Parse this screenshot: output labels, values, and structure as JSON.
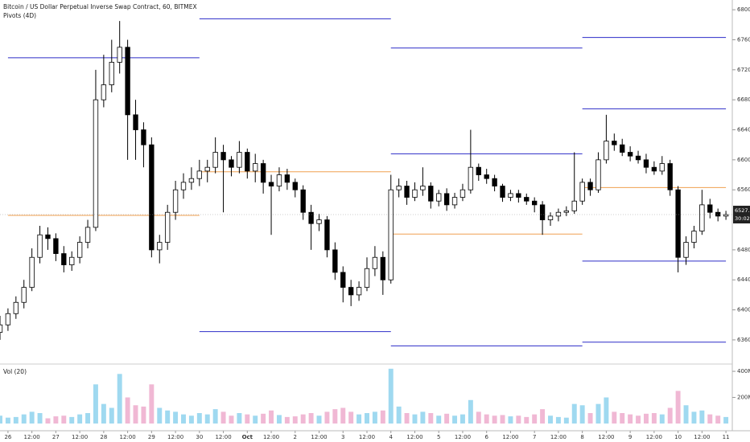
{
  "chart_data": {
    "type": "candlestick",
    "title": "Bitcoin / US Dollar Perpetual Inverse Swap Contract, 60, BITMEX",
    "subtitle": "Pivots (4D)",
    "up_color": "#ffffff",
    "down_color": "#000000",
    "wick_color": "#000000",
    "x": [
      -4,
      0,
      4,
      8,
      12,
      16,
      20,
      24,
      28,
      32,
      36,
      40,
      44,
      48,
      52,
      56,
      60,
      64,
      68,
      72,
      76,
      80,
      84,
      88,
      92,
      96,
      100,
      104,
      108,
      112,
      116,
      120,
      124,
      128,
      132,
      136,
      140,
      144,
      148,
      152,
      156,
      160,
      164,
      168,
      172,
      176,
      180,
      184,
      188,
      192,
      196,
      200,
      204,
      208,
      212,
      216,
      220,
      224,
      228,
      232,
      236,
      240,
      244,
      248,
      252,
      256,
      260,
      264,
      268,
      272,
      276,
      280,
      284,
      288,
      292,
      296,
      300,
      304,
      308,
      312,
      316,
      320,
      324,
      328,
      332,
      336,
      340,
      344,
      348,
      352,
      356,
      360
    ],
    "open": [
      6370,
      6380,
      6395,
      6410,
      6430,
      6470,
      6500,
      6495,
      6475,
      6460,
      6470,
      6490,
      6510,
      6680,
      6700,
      6730,
      6750,
      6660,
      6640,
      6620,
      6480,
      6490,
      6530,
      6560,
      6570,
      6575,
      6585,
      6590,
      6610,
      6600,
      6590,
      6610,
      6585,
      6595,
      6570,
      6565,
      6580,
      6570,
      6560,
      6530,
      6515,
      6520,
      6480,
      6450,
      6430,
      6420,
      6430,
      6455,
      6470,
      6440,
      6560,
      6565,
      6550,
      6560,
      6565,
      6545,
      6555,
      6540,
      6550,
      6560,
      6590,
      6580,
      6575,
      6565,
      6550,
      6555,
      6550,
      6545,
      6540,
      6520,
      6525,
      6530,
      6532,
      6545,
      6570,
      6560,
      6600,
      6625,
      6620,
      6610,
      6605,
      6600,
      6590,
      6585,
      6595,
      6560,
      6470,
      6490,
      6505,
      6540,
      6530,
      6525
    ],
    "high": [
      6392,
      6402,
      6418,
      6440,
      6482,
      6512,
      6510,
      6502,
      6485,
      6478,
      6498,
      6520,
      6720,
      6740,
      6760,
      6785,
      6760,
      6680,
      6650,
      6630,
      6500,
      6540,
      6572,
      6582,
      6590,
      6600,
      6600,
      6630,
      6620,
      6605,
      6625,
      6615,
      6608,
      6600,
      6580,
      6590,
      6588,
      6575,
      6566,
      6540,
      6528,
      6525,
      6490,
      6458,
      6440,
      6438,
      6470,
      6485,
      6478,
      6580,
      6575,
      6572,
      6570,
      6590,
      6570,
      6560,
      6562,
      6556,
      6568,
      6640,
      6595,
      6588,
      6580,
      6568,
      6560,
      6560,
      6555,
      6550,
      6545,
      6530,
      6535,
      6538,
      6610,
      6575,
      6575,
      6610,
      6660,
      6635,
      6628,
      6618,
      6612,
      6608,
      6598,
      6605,
      6600,
      6565,
      6498,
      6512,
      6560,
      6548,
      6535,
      6532
    ],
    "low": [
      6360,
      6372,
      6388,
      6402,
      6425,
      6462,
      6480,
      6465,
      6450,
      6452,
      6462,
      6482,
      6505,
      6670,
      6690,
      6715,
      6600,
      6600,
      6590,
      6470,
      6462,
      6480,
      6520,
      6548,
      6560,
      6565,
      6570,
      6582,
      6530,
      6578,
      6582,
      6575,
      6570,
      6555,
      6500,
      6558,
      6560,
      6550,
      6520,
      6480,
      6505,
      6470,
      6440,
      6410,
      6405,
      6412,
      6425,
      6445,
      6420,
      6435,
      6550,
      6540,
      6545,
      6552,
      6535,
      6538,
      6532,
      6535,
      6545,
      6555,
      6572,
      6568,
      6558,
      6544,
      6545,
      6543,
      6540,
      6530,
      6500,
      6512,
      6518,
      6525,
      6528,
      6540,
      6552,
      6556,
      6595,
      6612,
      6605,
      6598,
      6595,
      6582,
      6580,
      6580,
      6552,
      6450,
      6460,
      6482,
      6500,
      6522,
      6518,
      6520
    ],
    "close": [
      6380,
      6395,
      6410,
      6430,
      6470,
      6500,
      6495,
      6475,
      6460,
      6470,
      6490,
      6510,
      6680,
      6700,
      6730,
      6750,
      6660,
      6640,
      6620,
      6480,
      6490,
      6530,
      6560,
      6570,
      6575,
      6585,
      6590,
      6610,
      6600,
      6590,
      6610,
      6585,
      6595,
      6570,
      6565,
      6580,
      6570,
      6560,
      6530,
      6515,
      6520,
      6480,
      6450,
      6430,
      6420,
      6430,
      6455,
      6470,
      6440,
      6560,
      6565,
      6550,
      6560,
      6565,
      6545,
      6555,
      6540,
      6550,
      6560,
      6590,
      6580,
      6575,
      6565,
      6550,
      6555,
      6550,
      6545,
      6540,
      6520,
      6525,
      6530,
      6532,
      6545,
      6570,
      6560,
      6600,
      6625,
      6620,
      6610,
      6605,
      6600,
      6590,
      6585,
      6595,
      6560,
      6470,
      6490,
      6505,
      6540,
      6530,
      6525,
      6527
    ],
    "xlim": [
      -4,
      364
    ],
    "xticks": [
      {
        "value": 0,
        "label": "26"
      },
      {
        "value": 12,
        "label": "12:00"
      },
      {
        "value": 24,
        "label": "27"
      },
      {
        "value": 36,
        "label": "12:00"
      },
      {
        "value": 48,
        "label": "28"
      },
      {
        "value": 60,
        "label": "12:00"
      },
      {
        "value": 72,
        "label": "29"
      },
      {
        "value": 84,
        "label": "12:00"
      },
      {
        "value": 96,
        "label": "30"
      },
      {
        "value": 108,
        "label": "12:00"
      },
      {
        "value": 120,
        "label": "Oct"
      },
      {
        "value": 132,
        "label": "12:00"
      },
      {
        "value": 144,
        "label": "2"
      },
      {
        "value": 156,
        "label": "12:00"
      },
      {
        "value": 168,
        "label": "3"
      },
      {
        "value": 180,
        "label": "12:00"
      },
      {
        "value": 192,
        "label": "4"
      },
      {
        "value": 204,
        "label": "12:00"
      },
      {
        "value": 216,
        "label": "5"
      },
      {
        "value": 228,
        "label": "12:00"
      },
      {
        "value": 240,
        "label": "6"
      },
      {
        "value": 252,
        "label": "12:00"
      },
      {
        "value": 264,
        "label": "7"
      },
      {
        "value": 276,
        "label": "12:00"
      },
      {
        "value": 288,
        "label": "8"
      },
      {
        "value": 300,
        "label": "12:00"
      },
      {
        "value": 312,
        "label": "9"
      },
      {
        "value": 324,
        "label": "12:00"
      },
      {
        "value": 336,
        "label": "10"
      },
      {
        "value": 348,
        "label": "12:00"
      },
      {
        "value": 360,
        "label": "11"
      }
    ],
    "ylim": [
      6331,
      6813
    ],
    "yticks": [
      {
        "value": 6800,
        "label": "6800.0"
      },
      {
        "value": 6760,
        "label": "6760.0"
      },
      {
        "value": 6720,
        "label": "6720.0"
      },
      {
        "value": 6680,
        "label": "6680.0"
      },
      {
        "value": 6640,
        "label": "6640.0"
      },
      {
        "value": 6600,
        "label": "6600.0"
      },
      {
        "value": 6560,
        "label": "6560.0"
      },
      {
        "value": 6480,
        "label": "6480.0"
      },
      {
        "value": 6440,
        "label": "6440.0"
      },
      {
        "value": 6400,
        "label": "6400.0"
      },
      {
        "value": 6360,
        "label": "6360.0"
      }
    ],
    "price_tag": {
      "value": 6527,
      "label": "6527.0"
    },
    "countdown": "30:02",
    "pivot_lines": [
      {
        "color": "#2c2cc8",
        "x": [
          0,
          96
        ],
        "value": 6736
      },
      {
        "color": "#f0a050",
        "x": [
          0,
          96
        ],
        "value": 6526
      },
      {
        "color": "#2c2cc8",
        "x": [
          96,
          192
        ],
        "value": 6788
      },
      {
        "color": "#f0a050",
        "x": [
          96,
          192
        ],
        "value": 6584
      },
      {
        "color": "#2c2cc8",
        "x": [
          96,
          192
        ],
        "value": 6371
      },
      {
        "color": "#2c2cc8",
        "x": [
          192,
          288
        ],
        "value": 6749
      },
      {
        "color": "#2c2cc8",
        "x": [
          192,
          288
        ],
        "value": 6608
      },
      {
        "color": "#f0a050",
        "x": [
          192,
          288
        ],
        "value": 6501
      },
      {
        "color": "#2c2cc8",
        "x": [
          192,
          288
        ],
        "value": 6352
      },
      {
        "color": "#2c2cc8",
        "x": [
          288,
          360
        ],
        "value": 6763
      },
      {
        "color": "#2c2cc8",
        "x": [
          288,
          360
        ],
        "value": 6668
      },
      {
        "color": "#f0a050",
        "x": [
          288,
          360
        ],
        "value": 6563
      },
      {
        "color": "#2c2cc8",
        "x": [
          288,
          360
        ],
        "value": 6465
      },
      {
        "color": "#2c2cc8",
        "x": [
          288,
          360
        ],
        "value": 6357
      }
    ],
    "volume": {
      "label": "Vol (20)",
      "up_color": "#9fd9f0",
      "down_color": "#f0b8d4",
      "values": [
        60,
        45,
        50,
        70,
        90,
        80,
        40,
        55,
        60,
        50,
        70,
        80,
        300,
        150,
        120,
        380,
        200,
        140,
        130,
        300,
        120,
        100,
        90,
        70,
        60,
        80,
        70,
        110,
        90,
        60,
        80,
        70,
        60,
        75,
        100,
        65,
        50,
        55,
        70,
        80,
        60,
        90,
        110,
        120,
        90,
        70,
        80,
        90,
        100,
        420,
        130,
        80,
        70,
        90,
        80,
        60,
        75,
        60,
        70,
        180,
        90,
        70,
        60,
        65,
        55,
        60,
        50,
        70,
        110,
        60,
        50,
        45,
        150,
        140,
        80,
        150,
        200,
        90,
        80,
        70,
        60,
        75,
        80,
        70,
        120,
        250,
        140,
        90,
        100,
        70,
        60,
        50
      ],
      "ylim": [
        0,
        425
      ],
      "yticks": [
        {
          "value": 400,
          "label": "400M"
        },
        {
          "value": 200,
          "label": "200M"
        }
      ]
    }
  }
}
